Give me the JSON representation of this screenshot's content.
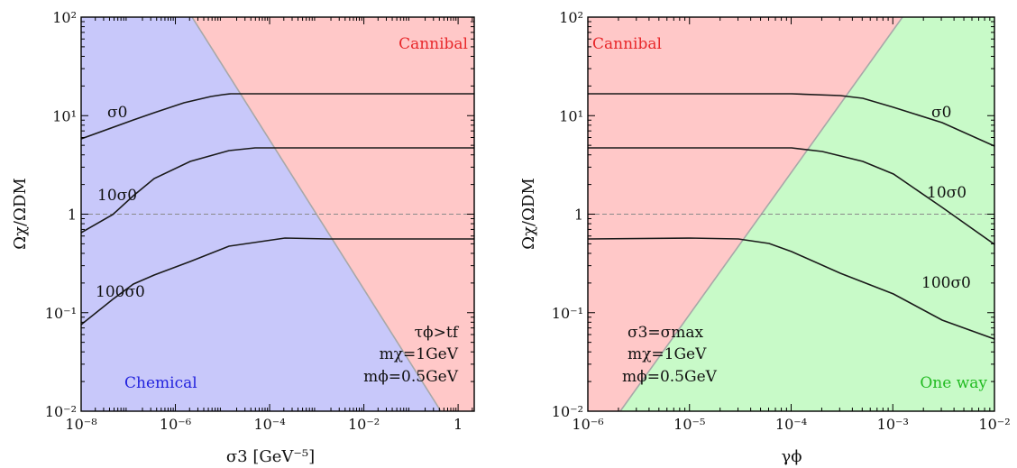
{
  "chart_data": [
    {
      "type": "line",
      "xlabel": "σ3  [GeV⁻⁵]",
      "ylabel": "Ωχ/ΩDM",
      "xscale": "log",
      "yscale": "log",
      "xlim": [
        1e-08,
        2.2
      ],
      "ylim": [
        0.01,
        100
      ],
      "x_ticks": [
        {
          "value": 1e-08,
          "label": "10⁻⁸"
        },
        {
          "value": 1e-06,
          "label": "10⁻⁶"
        },
        {
          "value": 0.0001,
          "label": "10⁻⁴"
        },
        {
          "value": 0.01,
          "label": "10⁻²"
        },
        {
          "value": 1,
          "label": "1"
        }
      ],
      "y_ticks": [
        {
          "value": 0.01,
          "label": "10⁻²"
        },
        {
          "value": 0.1,
          "label": "10⁻¹"
        },
        {
          "value": 1,
          "label": "1"
        },
        {
          "value": 10,
          "label": "10¹"
        },
        {
          "value": 100,
          "label": "10²"
        }
      ],
      "reference_line": {
        "y": 1,
        "style": "dashed"
      },
      "boundary": {
        "x": [
          5e-06,
          1.3
        ],
        "y": [
          100,
          0.01
        ]
      },
      "regions": [
        {
          "label": "Cannibal",
          "color": "#ffc8c8",
          "text_color": "#e8272a",
          "side": "upper-right"
        },
        {
          "label": "Chemical",
          "color": "#c8c8fa",
          "text_color": "#2222dd",
          "side": "lower-left"
        }
      ],
      "series": [
        {
          "name": "σ0",
          "x": [
            1e-08,
            3e-07,
            1e-06,
            6e-06,
            3e-05,
            6e-05,
            0.0001,
            0.01,
            1,
            2.2
          ],
          "y": [
            6,
            10,
            12.5,
            15,
            16.8,
            17.2,
            17.5,
            17.5,
            17.5,
            17.5
          ]
        },
        {
          "name": "10σ0",
          "x": [
            1e-08,
            1e-07,
            1e-06,
            1e-05,
            0.0001,
            0.0005,
            0.001,
            0.1,
            2.2
          ],
          "y": [
            0.65,
            0.95,
            1.45,
            2.2,
            2.8,
            3.05,
            3.1,
            3.1,
            3.1
          ]
        },
        {
          "name": "100σ0",
          "x": [
            1e-08,
            1e-07,
            1e-06,
            1e-05,
            0.0001,
            0.001,
            0.007,
            0.01,
            0.1,
            2.2
          ],
          "y": [
            0.075,
            0.11,
            0.16,
            0.25,
            0.38,
            0.5,
            0.55,
            0.56,
            0.56,
            0.56
          ]
        }
      ],
      "annotations": [
        "τϕ>tf",
        "mχ=1GeV",
        "mϕ=0.5GeV"
      ]
    },
    {
      "type": "line",
      "xlabel": "γϕ",
      "ylabel": "Ωχ/ΩDM",
      "xscale": "log",
      "yscale": "log",
      "xlim": [
        1e-06,
        0.01
      ],
      "ylim": [
        0.01,
        100
      ],
      "x_ticks": [
        {
          "value": 1e-06,
          "label": "10⁻⁶"
        },
        {
          "value": 1e-05,
          "label": "10⁻⁵"
        },
        {
          "value": 0.0001,
          "label": "10⁻⁴"
        },
        {
          "value": 0.001,
          "label": "10⁻³"
        },
        {
          "value": 0.01,
          "label": "10⁻²"
        }
      ],
      "y_ticks": [
        {
          "value": 0.01,
          "label": "10⁻²"
        },
        {
          "value": 0.1,
          "label": "10⁻¹"
        },
        {
          "value": 1,
          "label": "1"
        },
        {
          "value": 10,
          "label": "10¹"
        },
        {
          "value": 100,
          "label": "10²"
        }
      ],
      "reference_line": {
        "y": 1,
        "style": "dashed"
      },
      "boundary": {
        "x": [
          2.6e-06,
          0.00085
        ],
        "y": [
          0.01,
          100
        ]
      },
      "regions": [
        {
          "label": "Cannibal",
          "color": "#ffc8c8",
          "text_color": "#e8272a",
          "side": "upper-left"
        },
        {
          "label": "One way",
          "color": "#c8fac8",
          "text_color": "#22bb22",
          "side": "lower-right"
        }
      ],
      "series": [
        {
          "name": "σ0",
          "x": [
            1e-06,
            1e-05,
            0.0001,
            0.0003,
            0.0005,
            0.001,
            0.003,
            0.01
          ],
          "y": [
            17.5,
            17.5,
            17.5,
            16.8,
            15.5,
            12,
            8.5,
            5
          ]
        },
        {
          "name": "10σ0",
          "x": [
            1e-06,
            1e-05,
            0.0001,
            0.0002,
            0.0005,
            0.001,
            0.003,
            0.01
          ],
          "y": [
            3.1,
            3.1,
            3.05,
            2.8,
            2.2,
            1.6,
            1.05,
            0.5
          ]
        },
        {
          "name": "100σ0",
          "x": [
            1e-06,
            1e-05,
            3e-05,
            6e-05,
            0.0001,
            0.0003,
            0.001,
            0.003,
            0.01
          ],
          "y": [
            0.55,
            0.56,
            0.55,
            0.5,
            0.42,
            0.28,
            0.18,
            0.11,
            0.05
          ]
        }
      ],
      "annotations": [
        "σ3=σmax",
        "mχ=1GeV",
        "mϕ=0.5GeV"
      ]
    }
  ]
}
